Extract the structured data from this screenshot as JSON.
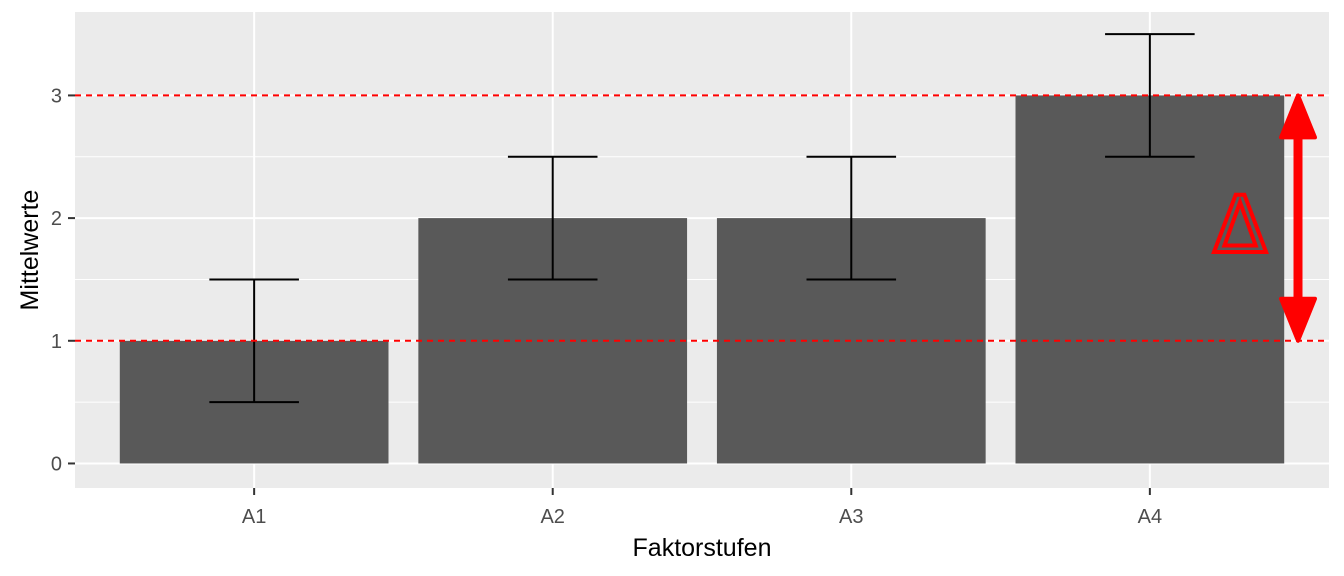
{
  "chart_data": {
    "type": "bar",
    "title": "",
    "xlabel": "Faktorstufen",
    "ylabel": "Mittelwerte",
    "categories": [
      "A1",
      "A2",
      "A3",
      "A4"
    ],
    "values": [
      1,
      2,
      2,
      3
    ],
    "error_bars": [
      {
        "lower": 0.5,
        "upper": 1.5
      },
      {
        "lower": 1.5,
        "upper": 2.5
      },
      {
        "lower": 1.5,
        "upper": 2.5
      },
      {
        "lower": 2.5,
        "upper": 3.5
      }
    ],
    "ylim": [
      -0.2,
      3.68
    ],
    "yticks": [
      "0",
      "1",
      "2",
      "3"
    ],
    "grid": true,
    "reference_lines": [
      1,
      3
    ],
    "annotation": {
      "label": "Δ",
      "from": 1,
      "to": 3
    },
    "colors": {
      "panel": "#ebebeb",
      "grid": "#ffffff",
      "bar": "#595959",
      "errorbar": "#000000",
      "reference": "#ff0000",
      "annotation": "#ff0000"
    }
  }
}
